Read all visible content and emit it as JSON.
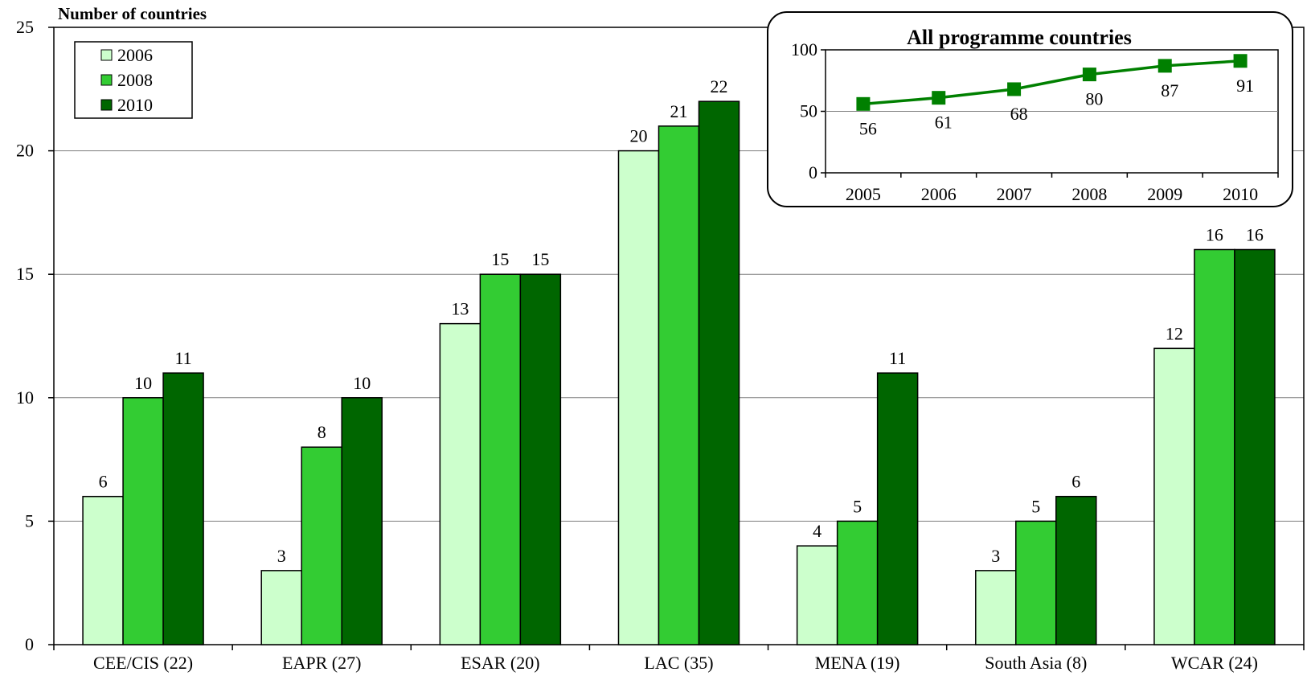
{
  "chart_data": [
    {
      "type": "bar",
      "ylabel": "Number of countries",
      "ylim": [
        0,
        25
      ],
      "yticks": [
        0,
        5,
        10,
        15,
        20,
        25
      ],
      "grid": true,
      "legend_position": "top-left",
      "categories": [
        "CEE/CIS (22)",
        "EAPR (27)",
        "ESAR (20)",
        "LAC (35)",
        "MENA (19)",
        "South Asia (8)",
        "WCAR (24)"
      ],
      "series": [
        {
          "name": "2006",
          "color": "#ccffcc",
          "values": [
            6,
            3,
            13,
            20,
            4,
            3,
            12
          ]
        },
        {
          "name": "2008",
          "color": "#33cc33",
          "values": [
            10,
            8,
            15,
            21,
            5,
            5,
            16
          ]
        },
        {
          "name": "2010",
          "color": "#006600",
          "values": [
            11,
            10,
            15,
            22,
            11,
            6,
            16
          ]
        }
      ]
    },
    {
      "type": "line",
      "title": "All programme  countries",
      "x": [
        "2005",
        "2006",
        "2007",
        "2008",
        "2009",
        "2010"
      ],
      "ylim": [
        0,
        100
      ],
      "yticks": [
        0,
        50,
        100
      ],
      "grid": true,
      "color": "#008000",
      "values": [
        56,
        61,
        68,
        80,
        87,
        91
      ]
    }
  ]
}
